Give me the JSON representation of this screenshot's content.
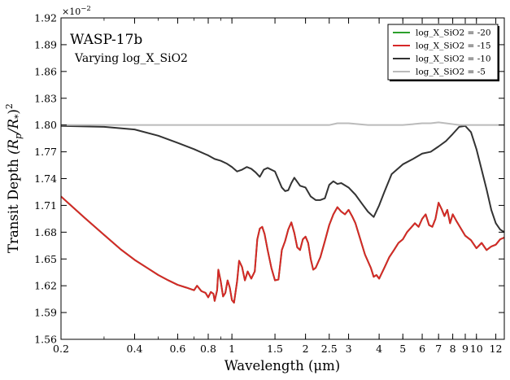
{
  "chart_data": {
    "type": "line",
    "title": "WASP-17b",
    "subtitle": "Varying log_X_SiO2",
    "xlabel": "Wavelength (μm)",
    "ylabel_parts": [
      "Transit Depth ",
      "(R",
      "p",
      "/R",
      "*",
      ")",
      "2"
    ],
    "y_offset_label": [
      "×10",
      "−2"
    ],
    "x_scale": "log",
    "xlim": [
      0.2,
      13.0
    ],
    "ylim": [
      1.56,
      1.92
    ],
    "grid": false,
    "legend_position": "top-right",
    "x_ticks": [
      {
        "value": 0.2,
        "label": "0.2"
      },
      {
        "value": 0.4,
        "label": "0.4"
      },
      {
        "value": 0.6,
        "label": "0.6"
      },
      {
        "value": 0.8,
        "label": "0.8"
      },
      {
        "value": 1,
        "label": "1"
      },
      {
        "value": 1.5,
        "label": "1.5"
      },
      {
        "value": 2,
        "label": "2"
      },
      {
        "value": 2.5,
        "label": "2.5"
      },
      {
        "value": 3,
        "label": "3"
      },
      {
        "value": 4,
        "label": "4"
      },
      {
        "value": 5,
        "label": "5"
      },
      {
        "value": 6,
        "label": "6"
      },
      {
        "value": 7,
        "label": "7"
      },
      {
        "value": 8,
        "label": "8"
      },
      {
        "value": 9,
        "label": "9"
      },
      {
        "value": 10,
        "label": "10"
      },
      {
        "value": 12,
        "label": "12"
      }
    ],
    "y_ticks": [
      {
        "value": 1.56,
        "label": "1.56"
      },
      {
        "value": 1.59,
        "label": "1.59"
      },
      {
        "value": 1.62,
        "label": "1.62"
      },
      {
        "value": 1.65,
        "label": "1.65"
      },
      {
        "value": 1.68,
        "label": "1.68"
      },
      {
        "value": 1.71,
        "label": "1.71"
      },
      {
        "value": 1.74,
        "label": "1.74"
      },
      {
        "value": 1.77,
        "label": "1.77"
      },
      {
        "value": 1.8,
        "label": "1.80"
      },
      {
        "value": 1.83,
        "label": "1.83"
      },
      {
        "value": 1.86,
        "label": "1.86"
      },
      {
        "value": 1.89,
        "label": "1.89"
      },
      {
        "value": 1.92,
        "label": "1.92"
      }
    ],
    "series": [
      {
        "name": "log_X_SiO2 = -20",
        "color": "#2ca02c",
        "x": [
          0.2,
          0.25,
          0.3,
          0.35,
          0.4,
          0.45,
          0.5,
          0.55,
          0.6,
          0.65,
          0.7,
          0.72,
          0.75,
          0.78,
          0.8,
          0.82,
          0.84,
          0.85,
          0.87,
          0.88,
          0.9,
          0.92,
          0.94,
          0.96,
          0.98,
          1.0,
          1.02,
          1.05,
          1.07,
          1.1,
          1.13,
          1.16,
          1.2,
          1.24,
          1.27,
          1.3,
          1.33,
          1.36,
          1.4,
          1.45,
          1.5,
          1.55,
          1.6,
          1.65,
          1.7,
          1.75,
          1.8,
          1.85,
          1.9,
          1.95,
          2.0,
          2.05,
          2.1,
          2.15,
          2.2,
          2.3,
          2.4,
          2.5,
          2.6,
          2.7,
          2.8,
          2.9,
          3.0,
          3.1,
          3.2,
          3.3,
          3.5,
          3.7,
          3.8,
          3.9,
          4.0,
          4.2,
          4.4,
          4.6,
          4.8,
          5.0,
          5.2,
          5.4,
          5.6,
          5.8,
          6.0,
          6.2,
          6.4,
          6.6,
          6.8,
          7.0,
          7.2,
          7.4,
          7.6,
          7.8,
          8.0,
          8.3,
          8.6,
          9.0,
          9.5,
          10.0,
          10.5,
          11.0,
          11.5,
          12.0,
          12.5,
          13.0
        ],
        "values": [
          1.72,
          1.696,
          1.677,
          1.661,
          1.649,
          1.64,
          1.632,
          1.626,
          1.621,
          1.618,
          1.615,
          1.62,
          1.614,
          1.612,
          1.607,
          1.613,
          1.611,
          1.603,
          1.615,
          1.638,
          1.625,
          1.608,
          1.612,
          1.626,
          1.618,
          1.604,
          1.601,
          1.625,
          1.648,
          1.641,
          1.626,
          1.636,
          1.628,
          1.636,
          1.672,
          1.684,
          1.686,
          1.678,
          1.66,
          1.64,
          1.626,
          1.627,
          1.66,
          1.67,
          1.683,
          1.691,
          1.679,
          1.663,
          1.66,
          1.672,
          1.675,
          1.668,
          1.65,
          1.638,
          1.64,
          1.652,
          1.67,
          1.688,
          1.7,
          1.708,
          1.703,
          1.7,
          1.705,
          1.698,
          1.69,
          1.678,
          1.655,
          1.64,
          1.63,
          1.632,
          1.628,
          1.64,
          1.652,
          1.66,
          1.668,
          1.672,
          1.68,
          1.685,
          1.69,
          1.686,
          1.695,
          1.7,
          1.688,
          1.686,
          1.695,
          1.713,
          1.706,
          1.698,
          1.705,
          1.69,
          1.7,
          1.692,
          1.685,
          1.676,
          1.671,
          1.662,
          1.668,
          1.66,
          1.664,
          1.666,
          1.672,
          1.674
        ]
      },
      {
        "name": "log_X_SiO2 = -15",
        "color": "#d62728",
        "x": [
          0.2,
          0.25,
          0.3,
          0.35,
          0.4,
          0.45,
          0.5,
          0.55,
          0.6,
          0.65,
          0.7,
          0.72,
          0.75,
          0.78,
          0.8,
          0.82,
          0.84,
          0.85,
          0.87,
          0.88,
          0.9,
          0.92,
          0.94,
          0.96,
          0.98,
          1.0,
          1.02,
          1.05,
          1.07,
          1.1,
          1.13,
          1.16,
          1.2,
          1.24,
          1.27,
          1.3,
          1.33,
          1.36,
          1.4,
          1.45,
          1.5,
          1.55,
          1.6,
          1.65,
          1.7,
          1.75,
          1.8,
          1.85,
          1.9,
          1.95,
          2.0,
          2.05,
          2.1,
          2.15,
          2.2,
          2.3,
          2.4,
          2.5,
          2.6,
          2.7,
          2.8,
          2.9,
          3.0,
          3.1,
          3.2,
          3.3,
          3.5,
          3.7,
          3.8,
          3.9,
          4.0,
          4.2,
          4.4,
          4.6,
          4.8,
          5.0,
          5.2,
          5.4,
          5.6,
          5.8,
          6.0,
          6.2,
          6.4,
          6.6,
          6.8,
          7.0,
          7.2,
          7.4,
          7.6,
          7.8,
          8.0,
          8.3,
          8.6,
          9.0,
          9.5,
          10.0,
          10.5,
          11.0,
          11.5,
          12.0,
          12.5,
          13.0
        ],
        "values": [
          1.72,
          1.696,
          1.677,
          1.661,
          1.649,
          1.64,
          1.632,
          1.626,
          1.621,
          1.618,
          1.615,
          1.62,
          1.614,
          1.612,
          1.607,
          1.613,
          1.611,
          1.603,
          1.615,
          1.638,
          1.625,
          1.608,
          1.612,
          1.626,
          1.618,
          1.604,
          1.601,
          1.625,
          1.648,
          1.641,
          1.626,
          1.636,
          1.628,
          1.636,
          1.672,
          1.684,
          1.686,
          1.678,
          1.66,
          1.64,
          1.626,
          1.627,
          1.66,
          1.67,
          1.683,
          1.691,
          1.679,
          1.663,
          1.66,
          1.672,
          1.675,
          1.668,
          1.65,
          1.638,
          1.64,
          1.652,
          1.67,
          1.688,
          1.7,
          1.708,
          1.703,
          1.7,
          1.705,
          1.698,
          1.69,
          1.678,
          1.655,
          1.64,
          1.63,
          1.632,
          1.628,
          1.64,
          1.652,
          1.66,
          1.668,
          1.672,
          1.68,
          1.685,
          1.69,
          1.686,
          1.695,
          1.7,
          1.688,
          1.686,
          1.695,
          1.713,
          1.706,
          1.698,
          1.705,
          1.69,
          1.7,
          1.692,
          1.685,
          1.676,
          1.671,
          1.662,
          1.668,
          1.66,
          1.664,
          1.666,
          1.672,
          1.674
        ]
      },
      {
        "name": "log_X_SiO2 = -10",
        "color": "#333333",
        "x": [
          0.2,
          0.3,
          0.4,
          0.5,
          0.6,
          0.7,
          0.8,
          0.85,
          0.9,
          0.95,
          1.0,
          1.05,
          1.1,
          1.15,
          1.2,
          1.25,
          1.3,
          1.35,
          1.4,
          1.5,
          1.6,
          1.65,
          1.7,
          1.75,
          1.8,
          1.9,
          2.0,
          2.1,
          2.2,
          2.3,
          2.4,
          2.5,
          2.6,
          2.7,
          2.8,
          3.0,
          3.2,
          3.4,
          3.6,
          3.8,
          4.0,
          4.2,
          4.5,
          5.0,
          5.5,
          6.0,
          6.5,
          7.0,
          7.5,
          8.0,
          8.5,
          9.0,
          9.5,
          10.0,
          10.5,
          11.0,
          11.5,
          12.0,
          12.5,
          13.0
        ],
        "values": [
          1.799,
          1.798,
          1.795,
          1.788,
          1.78,
          1.773,
          1.766,
          1.762,
          1.76,
          1.757,
          1.753,
          1.748,
          1.75,
          1.753,
          1.751,
          1.747,
          1.742,
          1.75,
          1.752,
          1.748,
          1.73,
          1.726,
          1.727,
          1.735,
          1.741,
          1.732,
          1.73,
          1.72,
          1.716,
          1.716,
          1.718,
          1.733,
          1.737,
          1.734,
          1.735,
          1.73,
          1.722,
          1.712,
          1.703,
          1.697,
          1.71,
          1.725,
          1.745,
          1.756,
          1.762,
          1.768,
          1.77,
          1.776,
          1.782,
          1.79,
          1.798,
          1.799,
          1.792,
          1.773,
          1.75,
          1.728,
          1.705,
          1.69,
          1.683,
          1.68
        ]
      },
      {
        "name": "log_X_SiO2 = -5",
        "color": "#bbbbbb",
        "x": [
          0.2,
          0.5,
          1.0,
          2.0,
          2.5,
          2.7,
          3.0,
          3.3,
          3.6,
          4.0,
          5.0,
          5.5,
          6.0,
          6.5,
          7.0,
          7.5,
          8.0,
          8.5,
          9.0,
          10.0,
          11.0,
          13.0
        ],
        "values": [
          1.8,
          1.8,
          1.8,
          1.8,
          1.8,
          1.802,
          1.802,
          1.801,
          1.8,
          1.8,
          1.8,
          1.801,
          1.802,
          1.802,
          1.803,
          1.802,
          1.801,
          1.8,
          1.8,
          1.8,
          1.8,
          1.8
        ]
      }
    ]
  }
}
